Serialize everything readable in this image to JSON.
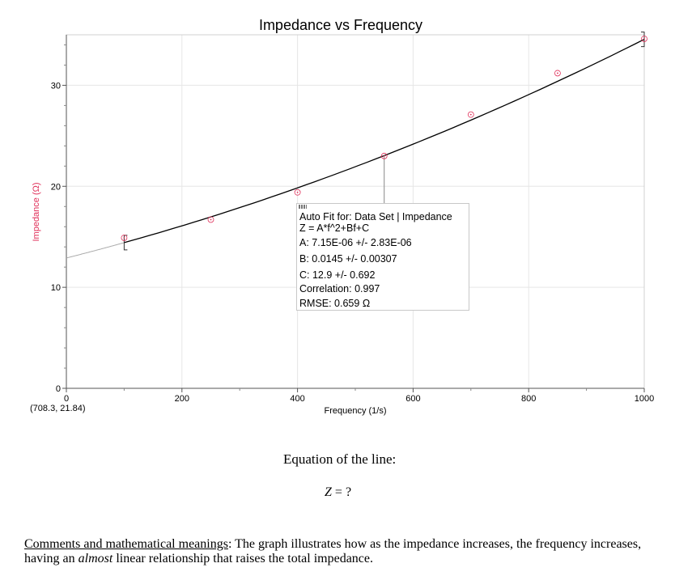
{
  "chart_data": {
    "type": "scatter",
    "title": "Impedance vs Frequency",
    "xlabel": "Frequency (1/s)",
    "ylabel": "Impedance (Ω)",
    "xlim": [
      0,
      1000
    ],
    "ylim": [
      0,
      35
    ],
    "xticks": [
      0,
      200,
      400,
      600,
      800,
      1000
    ],
    "yticks": [
      0,
      10,
      20,
      30
    ],
    "grid": true,
    "series": [
      {
        "x": [
          100,
          250,
          400,
          550,
          700,
          850,
          1000
        ],
        "y": [
          14.9,
          16.7,
          19.4,
          23.0,
          27.1,
          31.2,
          34.6
        ]
      }
    ],
    "fit": {
      "type": "quadratic",
      "A": 7.15e-06,
      "B": 0.0145,
      "C": 12.9,
      "x_range": [
        100,
        1000
      ],
      "heading": "Auto Fit for: Data Set | Impedance",
      "equation": "Z = A*f^2+Bf+C",
      "A_text": "A: 7.15E-06 +/- 2.83E-06",
      "B_text": "B: 0.0145 +/- 0.00307",
      "C_text": "C: 12.9 +/- 0.692",
      "correlation_text": "Correlation: 0.997",
      "rmse_text": "RMSE: 0.659 Ω"
    },
    "colors": {
      "points": "#e0305a",
      "fit": "#000000",
      "ylabel": "#e0305a",
      "grid": "#e6e6e6"
    },
    "cursor_readout": "(708.3, 21.84)"
  },
  "equation": {
    "heading": "Equation of the line:",
    "lhs": "Z",
    "op": "=",
    "rhs": "?"
  },
  "comments": {
    "label": "Comments and mathematical meanings",
    "text_1": ": The graph illustrates how as the impedance increases, the frequency increases, having an ",
    "emph": "almost",
    "text_2": " linear relationship that raises the total impedance."
  }
}
